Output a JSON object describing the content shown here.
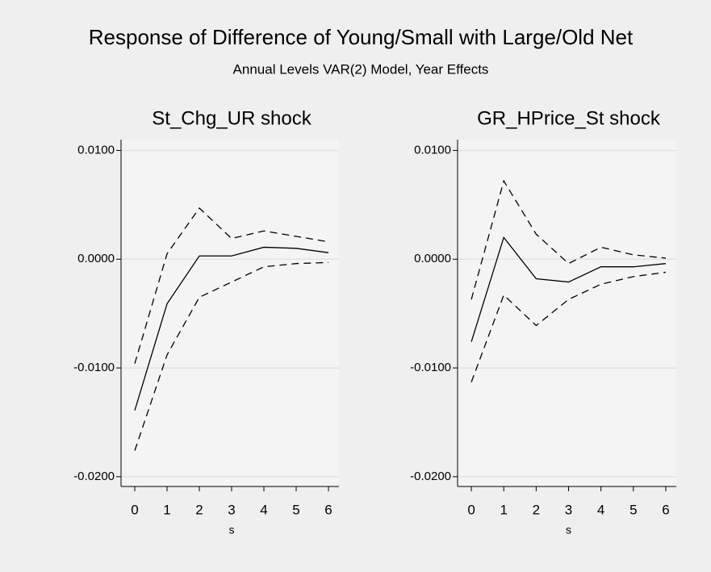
{
  "title": "Response of Difference of Young/Small with Large/Old Net",
  "subtitle": "Annual Levels VAR(2) Model, Year Effects",
  "chart_data": [
    {
      "type": "line",
      "title": "St_Chg_UR shock",
      "xlabel": "s",
      "x": [
        0,
        1,
        2,
        3,
        4,
        5,
        6
      ],
      "xlim": [
        -0.425,
        6.325
      ],
      "xticks": [
        0,
        1,
        2,
        3,
        4,
        5,
        6
      ],
      "ylim": [
        -0.0209,
        0.011
      ],
      "yticks": [
        {
          "value": -0.02,
          "label": "-0.0200"
        },
        {
          "value": -0.01,
          "label": "-0.0100"
        },
        {
          "value": 0,
          "label": "0.0000"
        },
        {
          "value": 0.01,
          "label": "0.0100"
        }
      ],
      "grid": true,
      "series": [
        {
          "color": "#000000",
          "dashed": false,
          "values": [
            -0.0139,
            -0.0041,
            0.0003,
            0.0003,
            0.0011,
            0.001,
            0.0006
          ]
        },
        {
          "color": "#000000",
          "dashed": true,
          "values": [
            -0.0096,
            0.0005,
            0.0047,
            0.0019,
            0.0026,
            0.0021,
            0.0016
          ]
        },
        {
          "color": "#000000",
          "dashed": true,
          "values": [
            -0.0176,
            -0.0088,
            -0.0035,
            -0.0021,
            -0.0007,
            -0.0004,
            -0.0003
          ]
        }
      ]
    },
    {
      "type": "line",
      "title": "GR_HPrice_St shock",
      "xlabel": "s",
      "x": [
        0,
        1,
        2,
        3,
        4,
        5,
        6
      ],
      "xlim": [
        -0.425,
        6.325
      ],
      "xticks": [
        0,
        1,
        2,
        3,
        4,
        5,
        6
      ],
      "ylim": [
        -0.0209,
        0.011
      ],
      "yticks": [
        {
          "value": -0.02,
          "label": "-0.0200"
        },
        {
          "value": -0.01,
          "label": "-0.0100"
        },
        {
          "value": 0,
          "label": "0.0000"
        },
        {
          "value": 0.01,
          "label": "0.0100"
        }
      ],
      "grid": true,
      "series": [
        {
          "color": "#000000",
          "dashed": false,
          "values": [
            -0.0076,
            0.002,
            -0.0018,
            -0.0021,
            -0.0007,
            -0.0007,
            -0.0004
          ]
        },
        {
          "color": "#000000",
          "dashed": true,
          "values": [
            -0.0037,
            0.0072,
            0.0023,
            -0.0004,
            0.0011,
            0.0004,
            0.0001
          ]
        },
        {
          "color": "#000000",
          "dashed": true,
          "values": [
            -0.0113,
            -0.0033,
            -0.0061,
            -0.0037,
            -0.0023,
            -0.0016,
            -0.0012
          ]
        }
      ]
    }
  ]
}
